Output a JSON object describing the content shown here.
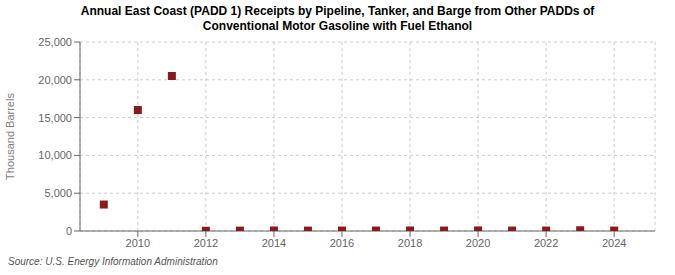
{
  "chart_data": {
    "type": "scatter",
    "title": "Annual East Coast (PADD 1) Receipts by Pipeline, Tanker, and Barge from Other PADDs of\nConventional Motor Gasoline with Fuel Ethanol",
    "y_label": "Thousand Barrels",
    "annotations": [
      "Source: U.S. Energy Information Administration"
    ],
    "x": [
      2009,
      2010,
      2011,
      2012,
      2013,
      2014,
      2015,
      2016,
      2017,
      2018,
      2019,
      2020,
      2021,
      2022,
      2023,
      2024
    ],
    "values": [
      3500,
      16000,
      20500,
      30,
      50,
      70,
      50,
      60,
      60,
      70,
      60,
      80,
      60,
      60,
      100,
      60
    ],
    "color": "#8b1a1a",
    "marker": "square",
    "xlim": [
      2008.3,
      2025.2
    ],
    "xticks": [
      2010,
      2012,
      2014,
      2016,
      2018,
      2020,
      2022,
      2024
    ],
    "ylim": [
      0,
      25000
    ],
    "yticks": [
      0,
      {
        "value": 5000,
        "label": "5,000"
      },
      {
        "value": 10000,
        "label": "10,000"
      },
      {
        "value": 15000,
        "label": "15,000"
      },
      {
        "value": 20000,
        "label": "20,000"
      },
      {
        "value": 25000,
        "label": "25,000"
      }
    ],
    "grid": true
  }
}
